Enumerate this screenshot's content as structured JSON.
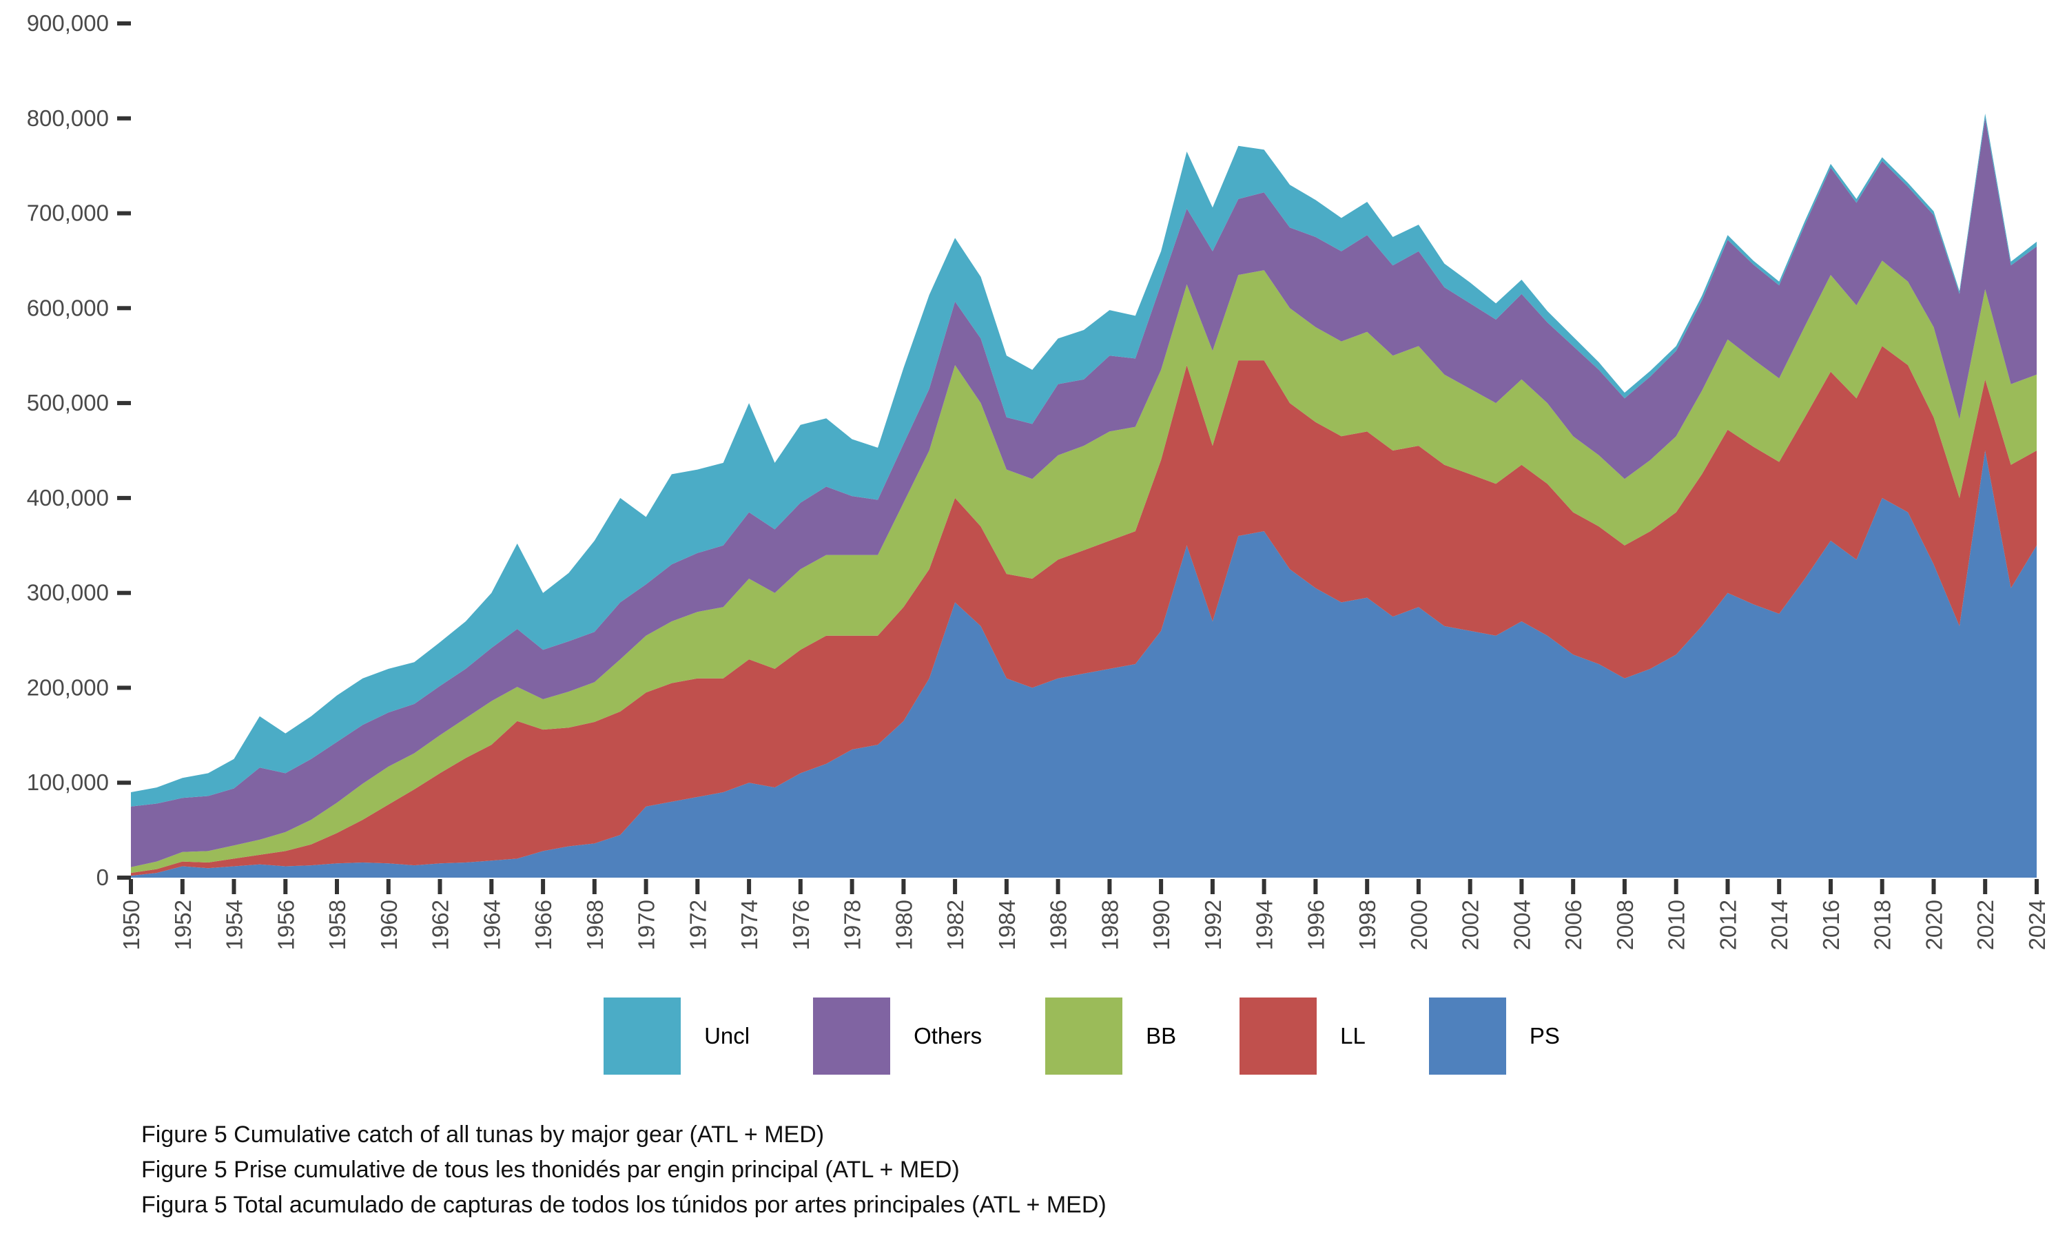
{
  "y_axis": {
    "tick_labels": [
      "0",
      "100,000",
      "200,000",
      "300,000",
      "400,000",
      "500,000",
      "600,000",
      "700,000",
      "800,000",
      "900,000"
    ],
    "tick_values": [
      0,
      100000,
      200000,
      300000,
      400000,
      500000,
      600000,
      700000,
      800000,
      900000
    ]
  },
  "x_axis": {
    "tick_years": [
      1950,
      1952,
      1954,
      1956,
      1958,
      1960,
      1962,
      1964,
      1966,
      1968,
      1970,
      1972,
      1974,
      1976,
      1978,
      1980,
      1982,
      1984,
      1986,
      1988,
      1990,
      1992,
      1994,
      1996,
      1998,
      2000,
      2002,
      2004,
      2006,
      2008,
      2010,
      2012,
      2014,
      2016,
      2018,
      2020,
      2022,
      2024
    ]
  },
  "legend": [
    {
      "label": "Uncl",
      "color": "#4BACC6"
    },
    {
      "label": "Others",
      "color": "#8064A2"
    },
    {
      "label": "BB",
      "color": "#9BBB59"
    },
    {
      "label": "LL",
      "color": "#C0504D"
    },
    {
      "label": "PS",
      "color": "#4F81BD"
    }
  ],
  "captions": [
    "Figure 5 Cumulative catch of all tunas by major gear (ATL + MED)",
    "Figure 5 Prise cumulative de tous les thonidés par engin principal (ATL + MED)",
    "Figura 5 Total acumulado de capturas de todos los túnidos por artes principales (ATL + MED)"
  ],
  "chart_data": {
    "type": "area",
    "stacked": true,
    "grid": false,
    "legend_position": "bottom",
    "title": "",
    "xlabel": "",
    "ylabel": "",
    "units": "t",
    "xlim": [
      1950,
      2024
    ],
    "ylim": [
      0,
      900000
    ],
    "x": [
      1950,
      1951,
      1952,
      1953,
      1954,
      1955,
      1956,
      1957,
      1958,
      1959,
      1960,
      1961,
      1962,
      1963,
      1964,
      1965,
      1966,
      1967,
      1968,
      1969,
      1970,
      1971,
      1972,
      1973,
      1974,
      1975,
      1976,
      1977,
      1978,
      1979,
      1980,
      1981,
      1982,
      1983,
      1984,
      1985,
      1986,
      1987,
      1988,
      1989,
      1990,
      1991,
      1992,
      1993,
      1994,
      1995,
      1996,
      1997,
      1998,
      1999,
      2000,
      2001,
      2002,
      2003,
      2004,
      2005,
      2006,
      2007,
      2008,
      2009,
      2010,
      2011,
      2012,
      2013,
      2014,
      2015,
      2016,
      2017,
      2018,
      2019,
      2020,
      2021,
      2022,
      2023,
      2024
    ],
    "series": [
      {
        "name": "PS",
        "color": "#4F81BD",
        "values": [
          2000,
          5000,
          12000,
          10000,
          12000,
          14000,
          12000,
          13000,
          15000,
          16000,
          15000,
          13000,
          15000,
          16000,
          18000,
          20000,
          28000,
          33000,
          36000,
          45000,
          75000,
          80000,
          85000,
          90000,
          100000,
          95000,
          110000,
          120000,
          135000,
          140000,
          165000,
          210000,
          290000,
          265000,
          210000,
          200000,
          210000,
          215000,
          220000,
          225000,
          260000,
          350000,
          270000,
          360000,
          365000,
          325000,
          305000,
          290000,
          295000,
          275000,
          285000,
          265000,
          260000,
          255000,
          270000,
          255000,
          235000,
          225000,
          210000,
          220000,
          235000,
          265000,
          300000,
          288000,
          278000,
          315000,
          355000,
          335000,
          400000,
          385000,
          330000,
          265000,
          450000,
          305000,
          350000
        ]
      },
      {
        "name": "LL",
        "color": "#C0504D",
        "values": [
          3000,
          4000,
          5000,
          6000,
          8000,
          10000,
          16000,
          22000,
          32000,
          45000,
          62000,
          80000,
          95000,
          110000,
          122000,
          145000,
          128000,
          125000,
          128000,
          130000,
          120000,
          125000,
          125000,
          120000,
          130000,
          125000,
          130000,
          135000,
          120000,
          115000,
          120000,
          115000,
          110000,
          105000,
          110000,
          115000,
          125000,
          130000,
          135000,
          140000,
          180000,
          190000,
          185000,
          185000,
          180000,
          175000,
          175000,
          175000,
          175000,
          175000,
          170000,
          170000,
          165000,
          160000,
          165000,
          160000,
          150000,
          145000,
          140000,
          145000,
          150000,
          160000,
          172000,
          166000,
          160000,
          170000,
          178000,
          170000,
          160000,
          155000,
          155000,
          135000,
          75000,
          130000,
          100000
        ]
      },
      {
        "name": "BB",
        "color": "#9BBB59",
        "values": [
          6000,
          8000,
          10000,
          12000,
          14000,
          16000,
          20000,
          26000,
          32000,
          38000,
          40000,
          38000,
          40000,
          42000,
          46000,
          36000,
          32000,
          38000,
          42000,
          55000,
          60000,
          65000,
          70000,
          75000,
          85000,
          80000,
          85000,
          85000,
          85000,
          85000,
          110000,
          125000,
          140000,
          130000,
          110000,
          105000,
          110000,
          110000,
          115000,
          110000,
          95000,
          85000,
          100000,
          90000,
          95000,
          100000,
          100000,
          100000,
          105000,
          100000,
          105000,
          95000,
          90000,
          85000,
          90000,
          85000,
          80000,
          75000,
          70000,
          75000,
          80000,
          88000,
          95000,
          92000,
          88000,
          96000,
          102000,
          98000,
          90000,
          88000,
          95000,
          83000,
          95000,
          85000,
          80000
        ]
      },
      {
        "name": "Others",
        "color": "#8064A2",
        "values": [
          64000,
          61000,
          57000,
          58000,
          60000,
          76000,
          62000,
          64000,
          64000,
          62000,
          57000,
          52000,
          52000,
          52000,
          56000,
          61000,
          52000,
          53000,
          53000,
          60000,
          54000,
          60000,
          62000,
          65000,
          70000,
          67000,
          70000,
          72000,
          62000,
          58000,
          62000,
          65000,
          67000,
          68000,
          55000,
          58000,
          75000,
          70000,
          80000,
          72000,
          90000,
          80000,
          105000,
          80000,
          82000,
          85000,
          95000,
          95000,
          102000,
          95000,
          100000,
          92000,
          90000,
          88000,
          90000,
          85000,
          95000,
          90000,
          85000,
          88000,
          90000,
          95000,
          105000,
          100000,
          98000,
          107000,
          113000,
          108000,
          105000,
          100000,
          118000,
          132000,
          180000,
          125000,
          135000
        ]
      },
      {
        "name": "Uncl",
        "color": "#4BACC6",
        "values": [
          15000,
          17000,
          21000,
          24000,
          31000,
          54000,
          42000,
          45000,
          49000,
          49000,
          46000,
          44000,
          46000,
          50000,
          58000,
          90000,
          60000,
          72000,
          96000,
          110000,
          71000,
          95000,
          88000,
          87000,
          115000,
          70000,
          82000,
          72000,
          60000,
          55000,
          80000,
          99000,
          67000,
          65000,
          65000,
          57000,
          48000,
          52000,
          48000,
          45000,
          35000,
          60000,
          46000,
          56000,
          45000,
          45000,
          39000,
          35000,
          35000,
          30000,
          28000,
          25000,
          22000,
          17000,
          15000,
          12000,
          10000,
          8000,
          6000,
          6000,
          5000,
          5000,
          5000,
          4000,
          4000,
          4000,
          4000,
          4000,
          4000,
          4000,
          4000,
          3000,
          5000,
          4000,
          5000
        ]
      }
    ]
  }
}
